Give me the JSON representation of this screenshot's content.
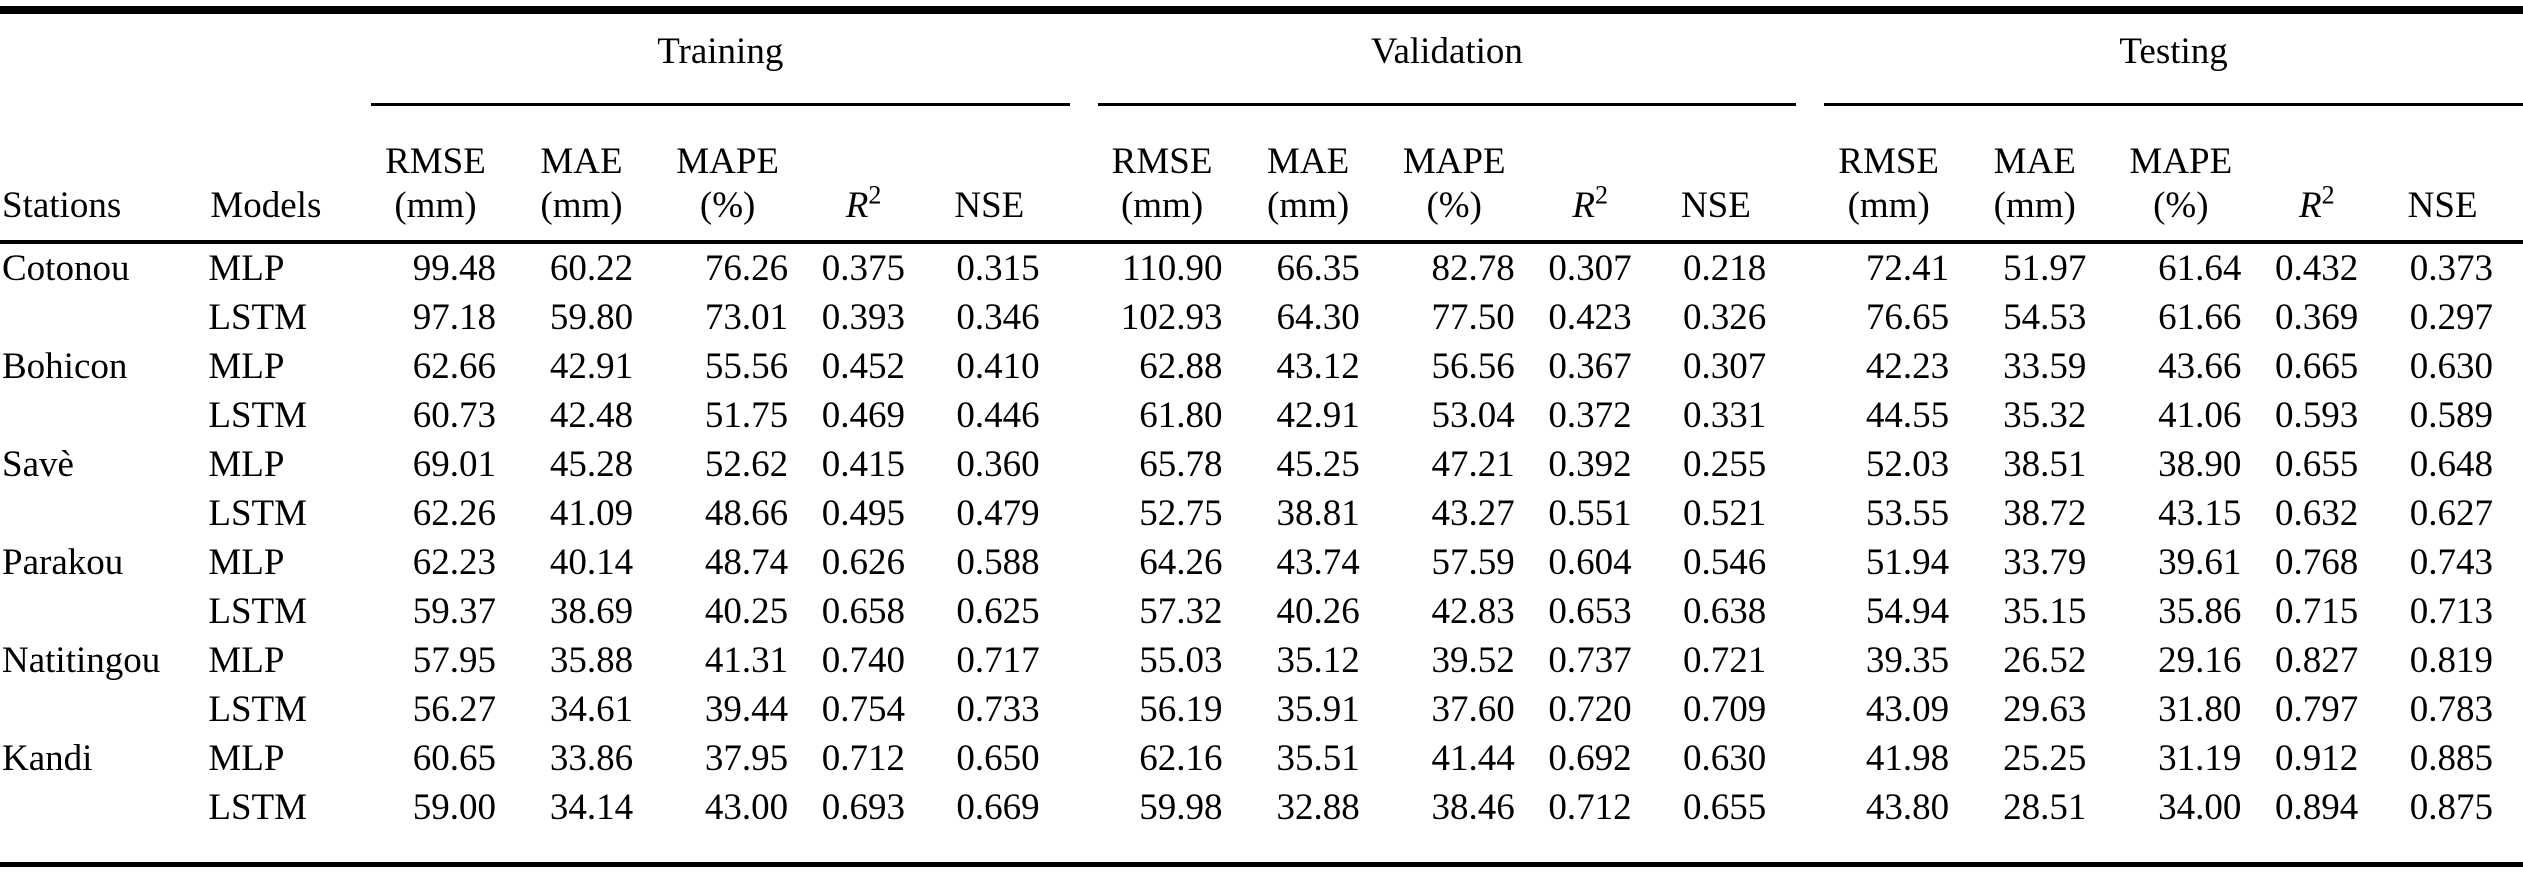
{
  "table": {
    "columns": {
      "stations": "Stations",
      "models": "Models"
    },
    "groups": [
      {
        "label": "Training"
      },
      {
        "label": "Validation"
      },
      {
        "label": "Testing"
      }
    ],
    "metrics": [
      {
        "line1": "RMSE",
        "line2": "(mm)"
      },
      {
        "line1": "MAE",
        "line2": "(mm)"
      },
      {
        "line1": "MAPE",
        "line2": "(%)"
      },
      {
        "base": "R",
        "sup": "2"
      },
      {
        "label": "NSE"
      }
    ],
    "rows": [
      {
        "station": "Cotonou",
        "model": "MLP",
        "values": [
          "99.48",
          "60.22",
          "76.26",
          "0.375",
          "0.315",
          "110.90",
          "66.35",
          "82.78",
          "0.307",
          "0.218",
          "72.41",
          "51.97",
          "61.64",
          "0.432",
          "0.373"
        ]
      },
      {
        "station": "",
        "model": "LSTM",
        "values": [
          "97.18",
          "59.80",
          "73.01",
          "0.393",
          "0.346",
          "102.93",
          "64.30",
          "77.50",
          "0.423",
          "0.326",
          "76.65",
          "54.53",
          "61.66",
          "0.369",
          "0.297"
        ]
      },
      {
        "station": "Bohicon",
        "model": "MLP",
        "values": [
          "62.66",
          "42.91",
          "55.56",
          "0.452",
          "0.410",
          "62.88",
          "43.12",
          "56.56",
          "0.367",
          "0.307",
          "42.23",
          "33.59",
          "43.66",
          "0.665",
          "0.630"
        ]
      },
      {
        "station": "",
        "model": "LSTM",
        "values": [
          "60.73",
          "42.48",
          "51.75",
          "0.469",
          "0.446",
          "61.80",
          "42.91",
          "53.04",
          "0.372",
          "0.331",
          "44.55",
          "35.32",
          "41.06",
          "0.593",
          "0.589"
        ]
      },
      {
        "station": "Savè",
        "model": "MLP",
        "values": [
          "69.01",
          "45.28",
          "52.62",
          "0.415",
          "0.360",
          "65.78",
          "45.25",
          "47.21",
          "0.392",
          "0.255",
          "52.03",
          "38.51",
          "38.90",
          "0.655",
          "0.648"
        ]
      },
      {
        "station": "",
        "model": "LSTM",
        "values": [
          "62.26",
          "41.09",
          "48.66",
          "0.495",
          "0.479",
          "52.75",
          "38.81",
          "43.27",
          "0.551",
          "0.521",
          "53.55",
          "38.72",
          "43.15",
          "0.632",
          "0.627"
        ]
      },
      {
        "station": "Parakou",
        "model": "MLP",
        "values": [
          "62.23",
          "40.14",
          "48.74",
          "0.626",
          "0.588",
          "64.26",
          "43.74",
          "57.59",
          "0.604",
          "0.546",
          "51.94",
          "33.79",
          "39.61",
          "0.768",
          "0.743"
        ]
      },
      {
        "station": "",
        "model": "LSTM",
        "values": [
          "59.37",
          "38.69",
          "40.25",
          "0.658",
          "0.625",
          "57.32",
          "40.26",
          "42.83",
          "0.653",
          "0.638",
          "54.94",
          "35.15",
          "35.86",
          "0.715",
          "0.713"
        ]
      },
      {
        "station": "Natitingou",
        "model": "MLP",
        "values": [
          "57.95",
          "35.88",
          "41.31",
          "0.740",
          "0.717",
          "55.03",
          "35.12",
          "39.52",
          "0.737",
          "0.721",
          "39.35",
          "26.52",
          "29.16",
          "0.827",
          "0.819"
        ]
      },
      {
        "station": "",
        "model": "LSTM",
        "values": [
          "56.27",
          "34.61",
          "39.44",
          "0.754",
          "0.733",
          "56.19",
          "35.91",
          "37.60",
          "0.720",
          "0.709",
          "43.09",
          "29.63",
          "31.80",
          "0.797",
          "0.783"
        ]
      },
      {
        "station": "Kandi",
        "model": "MLP",
        "values": [
          "60.65",
          "33.86",
          "37.95",
          "0.712",
          "0.650",
          "62.16",
          "35.51",
          "41.44",
          "0.692",
          "0.630",
          "41.98",
          "25.25",
          "31.19",
          "0.912",
          "0.885"
        ]
      },
      {
        "station": "",
        "model": "LSTM",
        "values": [
          "59.00",
          "34.14",
          "43.00",
          "0.693",
          "0.669",
          "59.98",
          "32.88",
          "38.46",
          "0.712",
          "0.655",
          "43.80",
          "28.51",
          "34.00",
          "0.894",
          "0.875"
        ]
      }
    ]
  }
}
